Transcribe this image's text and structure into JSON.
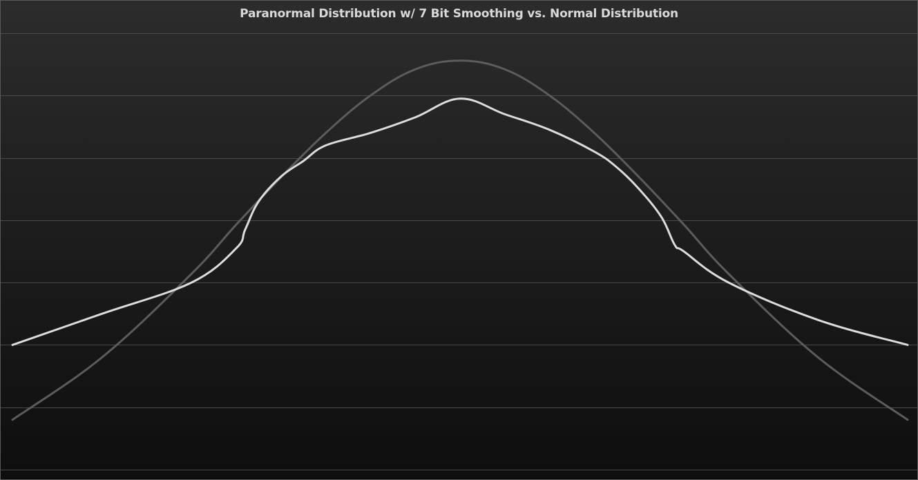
{
  "chart_data": {
    "type": "line",
    "title": "Paranormal Distribution w/ 7 Bit Smoothing vs. Normal Distribution",
    "xlabel": "",
    "ylabel": "",
    "x_range": [
      -1,
      1
    ],
    "ylim": [
      0,
      7
    ],
    "grid": "horizontal",
    "legend": "none",
    "gridline_count": 7,
    "series": [
      {
        "color": "#5c5c5c",
        "x": [
          -1.0,
          -0.8,
          -0.6,
          -0.5,
          -0.4,
          -0.3,
          -0.2,
          -0.1,
          0.0,
          0.1,
          0.2,
          0.3,
          0.4,
          0.5,
          0.6,
          0.8,
          1.0
        ],
        "values": [
          0.8,
          1.8,
          3.14,
          3.93,
          4.69,
          5.4,
          6.0,
          6.42,
          6.56,
          6.42,
          6.0,
          5.4,
          4.69,
          3.93,
          3.14,
          1.8,
          0.8
        ]
      },
      {
        "color": "#dcdcdc",
        "x": [
          -1.0,
          -0.8,
          -0.6,
          -0.5,
          -0.48,
          -0.45,
          -0.4,
          -0.35,
          -0.3,
          -0.2,
          -0.1,
          0.0,
          0.1,
          0.2,
          0.3,
          0.35,
          0.4,
          0.45,
          0.48,
          0.5,
          0.6,
          0.8,
          1.0
        ],
        "values": [
          2.0,
          2.5,
          3.0,
          3.55,
          3.85,
          4.3,
          4.7,
          4.95,
          5.2,
          5.4,
          5.65,
          5.95,
          5.7,
          5.45,
          5.1,
          4.85,
          4.5,
          4.05,
          3.6,
          3.5,
          3.0,
          2.4,
          2.0
        ]
      }
    ]
  }
}
